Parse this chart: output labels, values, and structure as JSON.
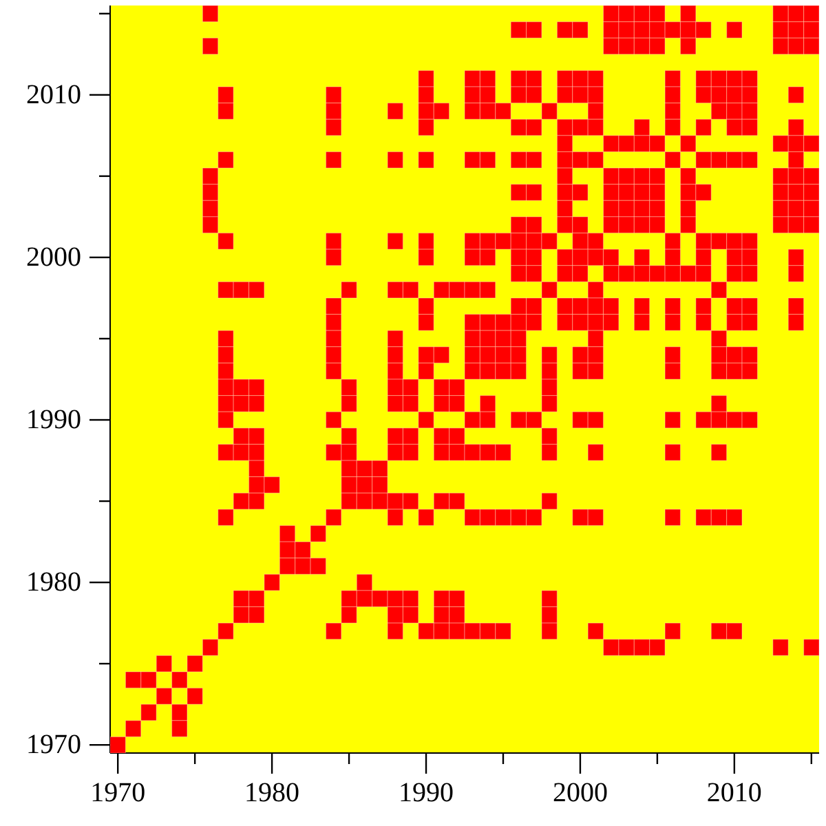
{
  "chart_data": {
    "type": "scatter",
    "marker": "square",
    "series": [
      {
        "color": "#ff0000",
        "x": [
          1976,
          2002,
          2003,
          2004,
          2005,
          2007,
          2013,
          2014,
          2015,
          1996,
          1997,
          1999,
          2000,
          2002,
          2003,
          2004,
          2005,
          2006,
          2007,
          2008,
          2010,
          2013,
          2014,
          2015,
          1976,
          2002,
          2003,
          2004,
          2005,
          2007,
          2013,
          2014,
          2015,
          1990,
          1993,
          1994,
          1996,
          1997,
          1999,
          2000,
          2001,
          2006,
          2008,
          2009,
          2010,
          2011,
          1977,
          1984,
          1990,
          1993,
          1994,
          1996,
          1997,
          1999,
          2000,
          2001,
          2006,
          2008,
          2009,
          2010,
          2011,
          2014,
          1977,
          1984,
          1988,
          1990,
          1991,
          1993,
          1994,
          1995,
          1998,
          2001,
          2006,
          2009,
          2010,
          2011,
          1984,
          1990,
          1996,
          1997,
          1999,
          2000,
          2001,
          2004,
          2006,
          2008,
          2010,
          2011,
          2014,
          1999,
          2002,
          2003,
          2004,
          2005,
          2007,
          2013,
          2014,
          2015,
          1977,
          1984,
          1988,
          1990,
          1993,
          1994,
          1996,
          1997,
          1999,
          2000,
          2001,
          2006,
          2008,
          2009,
          2010,
          2011,
          2014,
          1976,
          1999,
          2002,
          2003,
          2004,
          2005,
          2007,
          2013,
          2014,
          2015,
          1976,
          1996,
          1997,
          1999,
          2000,
          2002,
          2003,
          2004,
          2005,
          2007,
          2008,
          2013,
          2014,
          2015,
          1976,
          1999,
          2002,
          2003,
          2004,
          2005,
          2007,
          2013,
          2014,
          2015,
          1976,
          1996,
          1997,
          1999,
          2000,
          2002,
          2003,
          2004,
          2005,
          2007,
          2013,
          2014,
          2015,
          1977,
          1984,
          1988,
          1990,
          1993,
          1994,
          1995,
          1996,
          1997,
          1998,
          2000,
          2001,
          2006,
          2008,
          2009,
          2010,
          2011,
          1984,
          1990,
          1993,
          1994,
          1996,
          1997,
          1999,
          2000,
          2001,
          2002,
          2004,
          2006,
          2008,
          2010,
          2011,
          2014,
          1996,
          1997,
          1999,
          2000,
          2002,
          2003,
          2004,
          2005,
          2006,
          2007,
          2008,
          2010,
          2011,
          2014,
          1977,
          1978,
          1979,
          1985,
          1988,
          1989,
          1991,
          1992,
          1993,
          1994,
          1998,
          2001,
          2009,
          1984,
          1990,
          1996,
          1997,
          1999,
          2000,
          2001,
          2002,
          2004,
          2006,
          2008,
          2010,
          2011,
          2014,
          1984,
          1990,
          1993,
          1994,
          1995,
          1996,
          1997,
          1999,
          2000,
          2001,
          2002,
          2004,
          2006,
          2008,
          2010,
          2011,
          2014,
          1977,
          1984,
          1988,
          1993,
          1994,
          1995,
          1996,
          2001,
          2009,
          1977,
          1984,
          1988,
          1990,
          1991,
          1993,
          1994,
          1995,
          1996,
          1998,
          2000,
          2001,
          2006,
          2009,
          2010,
          2011,
          1977,
          1984,
          1988,
          1990,
          1993,
          1994,
          1995,
          1996,
          1998,
          2000,
          2001,
          2006,
          2009,
          2010,
          2011,
          1977,
          1978,
          1979,
          1985,
          1988,
          1989,
          1991,
          1992,
          1998,
          1977,
          1978,
          1979,
          1985,
          1988,
          1989,
          1991,
          1992,
          1994,
          1998,
          2009,
          1977,
          1984,
          1990,
          1993,
          1994,
          1996,
          1997,
          2000,
          2001,
          2006,
          2008,
          2009,
          2010,
          2011,
          1978,
          1979,
          1985,
          1988,
          1989,
          1991,
          1992,
          1998,
          1977,
          1978,
          1979,
          1984,
          1985,
          1988,
          1989,
          1991,
          1992,
          1993,
          1994,
          1995,
          1998,
          2001,
          2006,
          2009,
          1979,
          1985,
          1986,
          1987,
          1979,
          1980,
          1985,
          1986,
          1987,
          1978,
          1979,
          1985,
          1986,
          1987,
          1988,
          1989,
          1991,
          1992,
          1998,
          1977,
          1984,
          1988,
          1990,
          1993,
          1994,
          1995,
          1996,
          1997,
          2000,
          2001,
          2006,
          2008,
          2009,
          2010,
          1981,
          1983,
          1981,
          1982,
          1981,
          1982,
          1983,
          1980,
          1986,
          1978,
          1979,
          1985,
          1986,
          1987,
          1988,
          1989,
          1991,
          1992,
          1998,
          1978,
          1979,
          1985,
          1988,
          1989,
          1991,
          1992,
          1998,
          1977,
          1984,
          1988,
          1990,
          1991,
          1992,
          1993,
          1994,
          1995,
          1998,
          2001,
          2006,
          2009,
          2010,
          1976,
          2002,
          2003,
          2004,
          2005,
          2013,
          2015,
          1973,
          1975,
          1971,
          1972,
          1974,
          1973,
          1975,
          1972,
          1974,
          1971,
          1974,
          1970
        ],
        "values": [
          2015,
          2015,
          2015,
          2015,
          2015,
          2015,
          2015,
          2015,
          2015,
          2014,
          2014,
          2014,
          2014,
          2014,
          2014,
          2014,
          2014,
          2014,
          2014,
          2014,
          2014,
          2014,
          2014,
          2014,
          2013,
          2013,
          2013,
          2013,
          2013,
          2013,
          2013,
          2013,
          2013,
          2011,
          2011,
          2011,
          2011,
          2011,
          2011,
          2011,
          2011,
          2011,
          2011,
          2011,
          2011,
          2011,
          2010,
          2010,
          2010,
          2010,
          2010,
          2010,
          2010,
          2010,
          2010,
          2010,
          2010,
          2010,
          2010,
          2010,
          2010,
          2010,
          2009,
          2009,
          2009,
          2009,
          2009,
          2009,
          2009,
          2009,
          2009,
          2009,
          2009,
          2009,
          2009,
          2009,
          2008,
          2008,
          2008,
          2008,
          2008,
          2008,
          2008,
          2008,
          2008,
          2008,
          2008,
          2008,
          2008,
          2007,
          2007,
          2007,
          2007,
          2007,
          2007,
          2007,
          2007,
          2007,
          2006,
          2006,
          2006,
          2006,
          2006,
          2006,
          2006,
          2006,
          2006,
          2006,
          2006,
          2006,
          2006,
          2006,
          2006,
          2006,
          2006,
          2005,
          2005,
          2005,
          2005,
          2005,
          2005,
          2005,
          2005,
          2005,
          2005,
          2004,
          2004,
          2004,
          2004,
          2004,
          2004,
          2004,
          2004,
          2004,
          2004,
          2004,
          2004,
          2004,
          2004,
          2003,
          2003,
          2003,
          2003,
          2003,
          2003,
          2003,
          2003,
          2003,
          2003,
          2002,
          2002,
          2002,
          2002,
          2002,
          2002,
          2002,
          2002,
          2002,
          2002,
          2002,
          2002,
          2002,
          2001,
          2001,
          2001,
          2001,
          2001,
          2001,
          2001,
          2001,
          2001,
          2001,
          2001,
          2001,
          2001,
          2001,
          2001,
          2001,
          2001,
          2000,
          2000,
          2000,
          2000,
          2000,
          2000,
          2000,
          2000,
          2000,
          2000,
          2000,
          2000,
          2000,
          2000,
          2000,
          2000,
          1999,
          1999,
          1999,
          1999,
          1999,
          1999,
          1999,
          1999,
          1999,
          1999,
          1999,
          1999,
          1999,
          1999,
          1998,
          1998,
          1998,
          1998,
          1998,
          1998,
          1998,
          1998,
          1998,
          1998,
          1998,
          1998,
          1998,
          1997,
          1997,
          1997,
          1997,
          1997,
          1997,
          1997,
          1997,
          1997,
          1997,
          1997,
          1997,
          1997,
          1997,
          1996,
          1996,
          1996,
          1996,
          1996,
          1996,
          1996,
          1996,
          1996,
          1996,
          1996,
          1996,
          1996,
          1996,
          1996,
          1996,
          1996,
          1995,
          1995,
          1995,
          1995,
          1995,
          1995,
          1995,
          1995,
          1995,
          1994,
          1994,
          1994,
          1994,
          1994,
          1994,
          1994,
          1994,
          1994,
          1994,
          1994,
          1994,
          1994,
          1994,
          1994,
          1994,
          1993,
          1993,
          1993,
          1993,
          1993,
          1993,
          1993,
          1993,
          1993,
          1993,
          1993,
          1993,
          1993,
          1993,
          1993,
          1992,
          1992,
          1992,
          1992,
          1992,
          1992,
          1992,
          1992,
          1992,
          1991,
          1991,
          1991,
          1991,
          1991,
          1991,
          1991,
          1991,
          1991,
          1991,
          1991,
          1990,
          1990,
          1990,
          1990,
          1990,
          1990,
          1990,
          1990,
          1990,
          1990,
          1990,
          1990,
          1990,
          1990,
          1989,
          1989,
          1989,
          1989,
          1989,
          1989,
          1989,
          1989,
          1988,
          1988,
          1988,
          1988,
          1988,
          1988,
          1988,
          1988,
          1988,
          1988,
          1988,
          1988,
          1988,
          1988,
          1988,
          1988,
          1987,
          1987,
          1987,
          1987,
          1986,
          1986,
          1986,
          1986,
          1986,
          1985,
          1985,
          1985,
          1985,
          1985,
          1985,
          1985,
          1985,
          1985,
          1985,
          1984,
          1984,
          1984,
          1984,
          1984,
          1984,
          1984,
          1984,
          1984,
          1984,
          1984,
          1984,
          1984,
          1984,
          1984,
          1983,
          1983,
          1982,
          1982,
          1981,
          1981,
          1981,
          1980,
          1980,
          1979,
          1979,
          1979,
          1979,
          1979,
          1979,
          1979,
          1979,
          1979,
          1979,
          1978,
          1978,
          1978,
          1978,
          1978,
          1978,
          1978,
          1978,
          1977,
          1977,
          1977,
          1977,
          1977,
          1977,
          1977,
          1977,
          1977,
          1977,
          1977,
          1977,
          1977,
          1977,
          1976,
          1976,
          1976,
          1976,
          1976,
          1976,
          1976,
          1975,
          1975,
          1974,
          1974,
          1974,
          1973,
          1973,
          1972,
          1972,
          1971,
          1971,
          1970
        ]
      }
    ],
    "xlim": [
      1969.5,
      2015.5
    ],
    "ylim": [
      1969.5,
      2015.5
    ],
    "xticks": [
      1970,
      {
        "value": 1975,
        "label": null
      },
      1980,
      {
        "value": 1985,
        "label": null
      },
      1990,
      {
        "value": 1995,
        "label": null
      },
      2000,
      {
        "value": 2005,
        "label": null
      },
      2010,
      {
        "value": 2015,
        "label": null
      }
    ],
    "yticks": [
      1970,
      {
        "value": 1975,
        "label": null
      },
      1980,
      {
        "value": 1985,
        "label": null
      },
      1990,
      {
        "value": 1995,
        "label": null
      },
      2000,
      {
        "value": 2005,
        "label": null
      },
      2010,
      {
        "value": 2015,
        "label": null
      }
    ]
  }
}
